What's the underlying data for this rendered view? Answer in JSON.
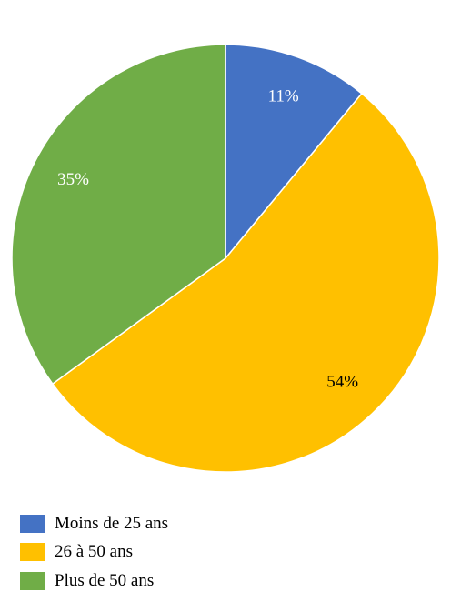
{
  "chart_data": {
    "type": "pie",
    "categories": [
      "Moins de 25 ans",
      "26 à 50 ans",
      "Plus de 50 ans"
    ],
    "values": [
      11,
      54,
      35
    ],
    "labels": [
      "11%",
      "54%",
      "35%"
    ],
    "colors": [
      "#4472C4",
      "#FFC000",
      "#70AD47"
    ],
    "label_colors": [
      "#ffffff",
      "#000000",
      "#ffffff"
    ],
    "start_angle_deg": 0,
    "direction": "clockwise",
    "legend_position": "bottom-left"
  }
}
